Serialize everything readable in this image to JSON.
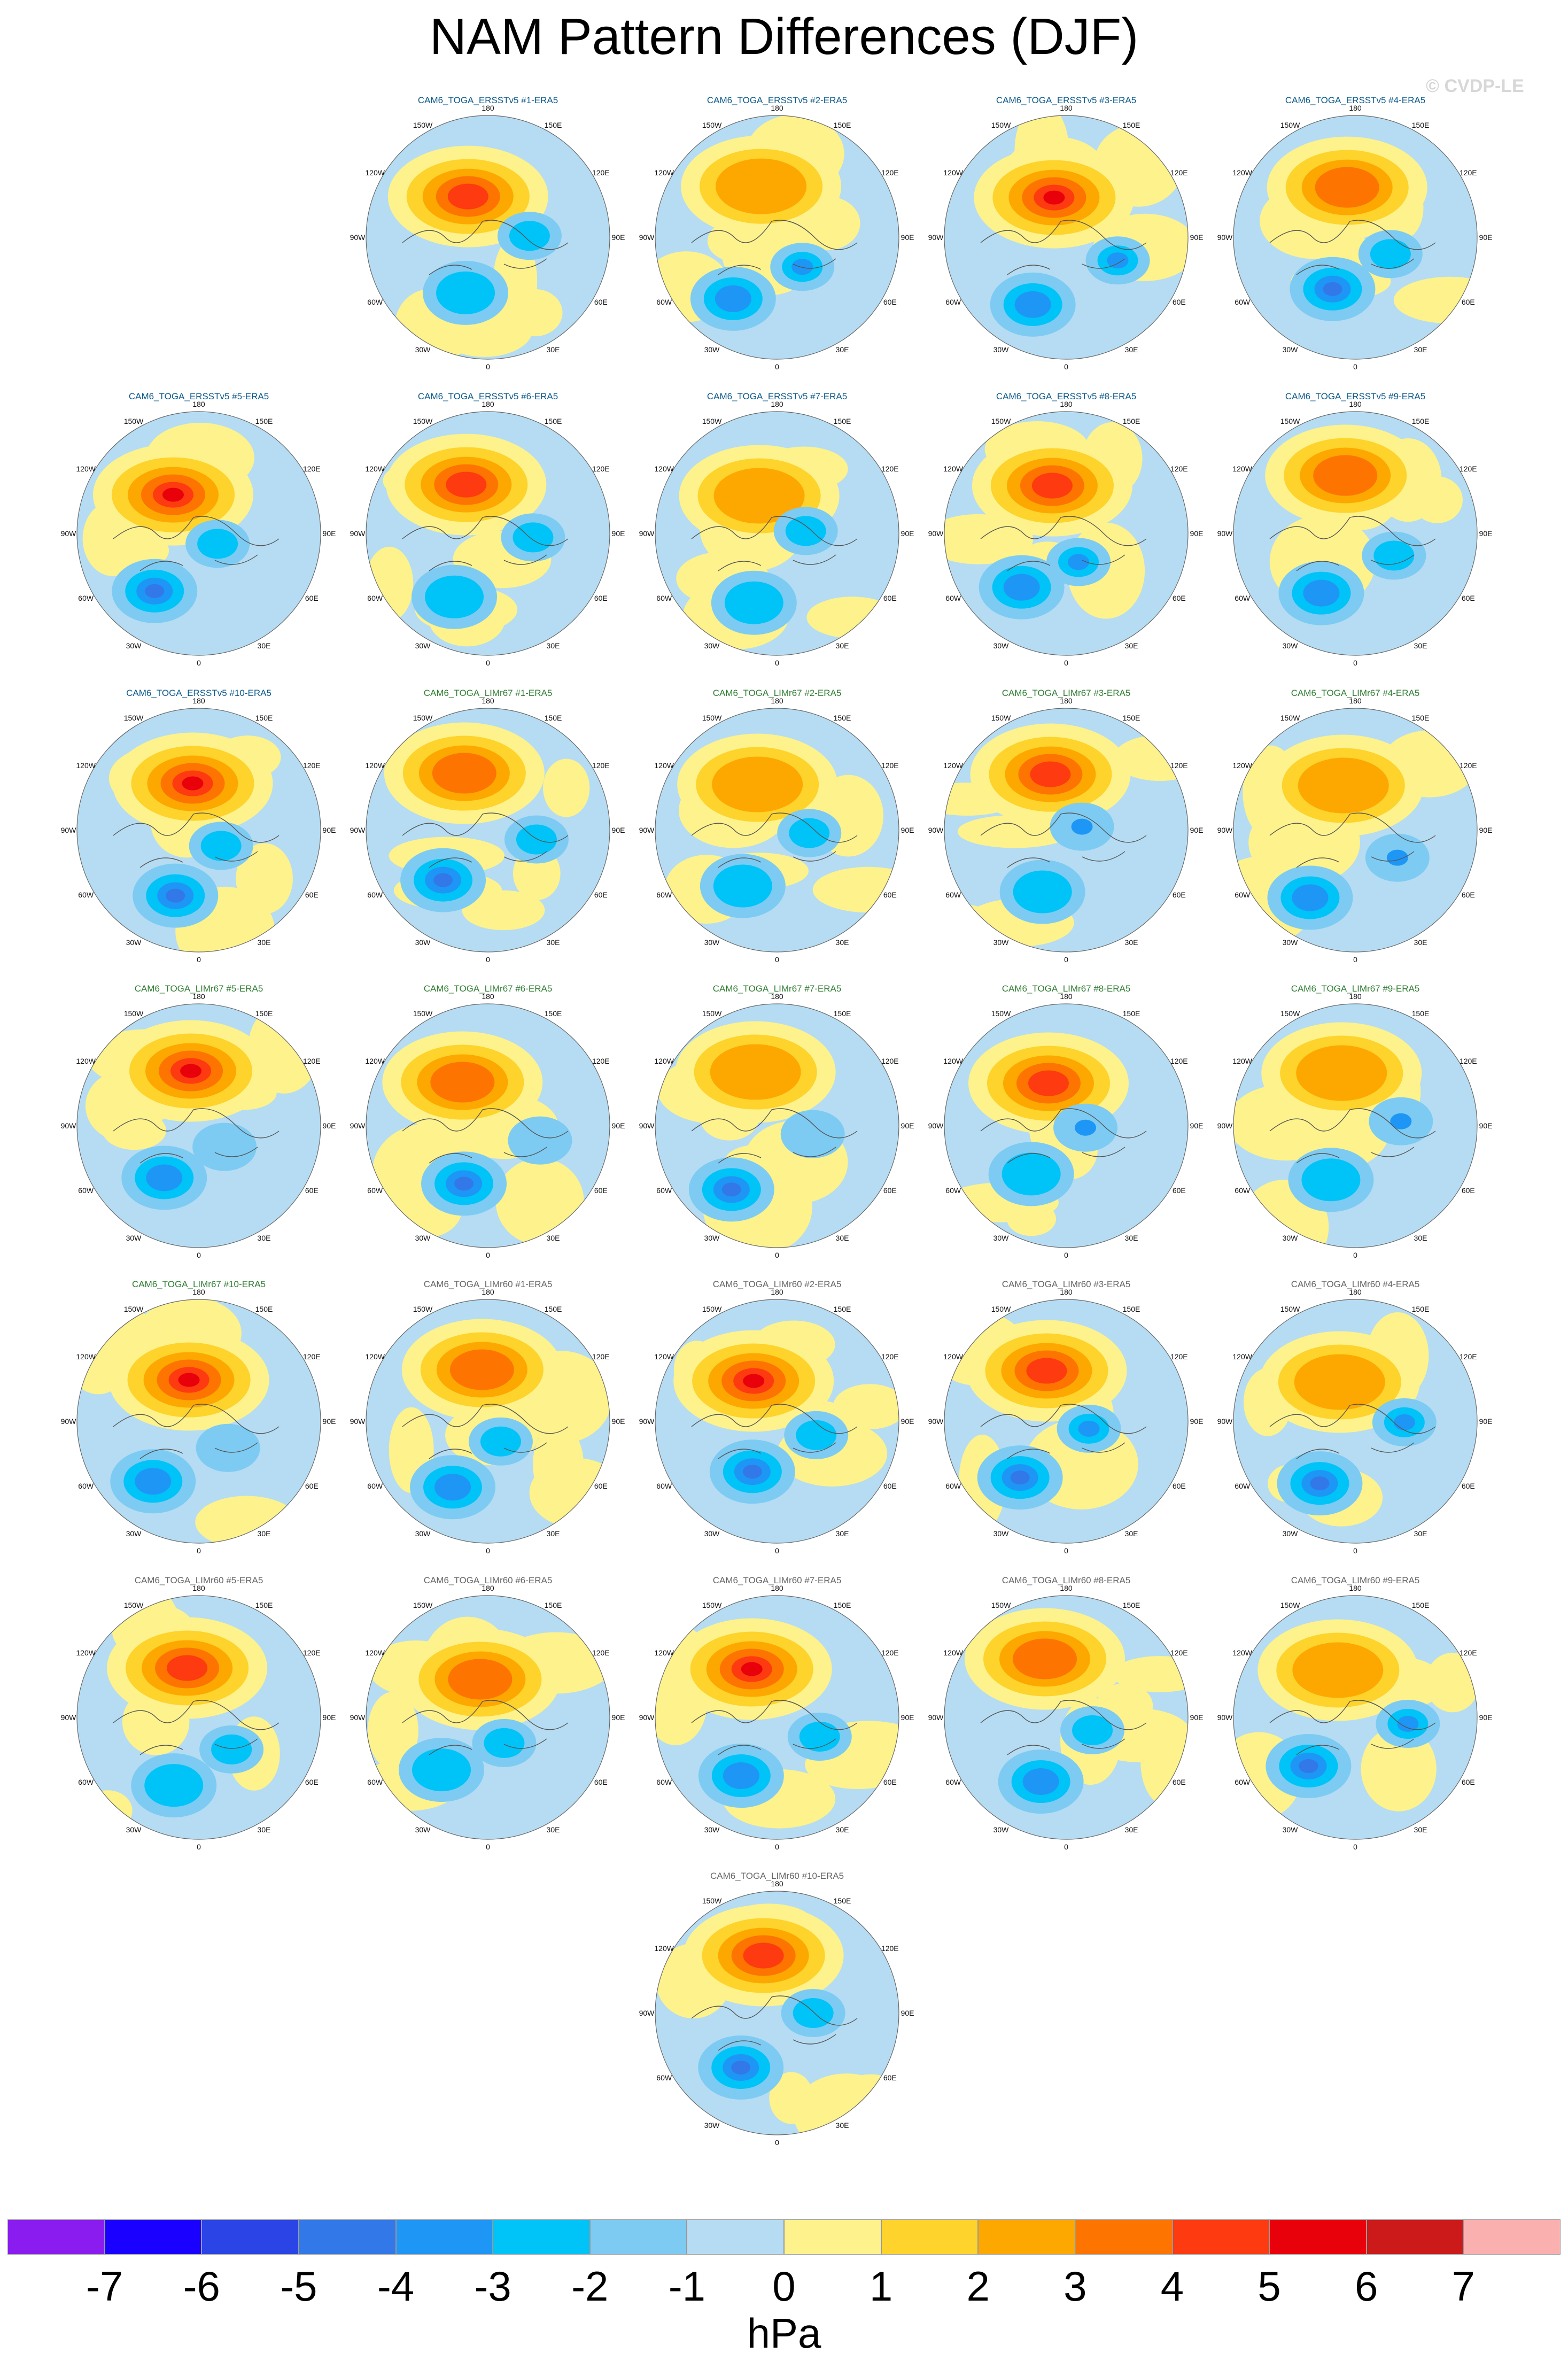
{
  "title": "NAM Pattern Differences (DJF)",
  "watermark": "© CVDP-LE",
  "colors": {
    "ERSST_title": "#0b5a8c",
    "LIMr67_title": "#2f7d32",
    "LIMr60_title": "#666666"
  },
  "map_labels": {
    "lon_180": "180",
    "lon_150W": "150W",
    "lon_150E": "150E",
    "lon_120W": "120W",
    "lon_120E": "120E",
    "lon_90W": "90W",
    "lon_90E": "90E",
    "lon_60W": "60W",
    "lon_60E": "60E",
    "lon_30W": "30W",
    "lon_30E": "30E",
    "lon_0": "0"
  },
  "panels": [
    {
      "title": "CAM6_TOGA_ERSSTv5 #1-ERA5",
      "group": "ERSST"
    },
    {
      "title": "CAM6_TOGA_ERSSTv5 #2-ERA5",
      "group": "ERSST"
    },
    {
      "title": "CAM6_TOGA_ERSSTv5 #3-ERA5",
      "group": "ERSST"
    },
    {
      "title": "CAM6_TOGA_ERSSTv5 #4-ERA5",
      "group": "ERSST"
    },
    {
      "title": "CAM6_TOGA_ERSSTv5 #5-ERA5",
      "group": "ERSST"
    },
    {
      "title": "CAM6_TOGA_ERSSTv5 #6-ERA5",
      "group": "ERSST"
    },
    {
      "title": "CAM6_TOGA_ERSSTv5 #7-ERA5",
      "group": "ERSST"
    },
    {
      "title": "CAM6_TOGA_ERSSTv5 #8-ERA5",
      "group": "ERSST"
    },
    {
      "title": "CAM6_TOGA_ERSSTv5 #9-ERA5",
      "group": "ERSST"
    },
    {
      "title": "CAM6_TOGA_ERSSTv5 #10-ERA5",
      "group": "ERSST"
    },
    {
      "title": "CAM6_TOGA_LIMr67 #1-ERA5",
      "group": "LIMr67"
    },
    {
      "title": "CAM6_TOGA_LIMr67 #2-ERA5",
      "group": "LIMr67"
    },
    {
      "title": "CAM6_TOGA_LIMr67 #3-ERA5",
      "group": "LIMr67"
    },
    {
      "title": "CAM6_TOGA_LIMr67 #4-ERA5",
      "group": "LIMr67"
    },
    {
      "title": "CAM6_TOGA_LIMr67 #5-ERA5",
      "group": "LIMr67"
    },
    {
      "title": "CAM6_TOGA_LIMr67 #6-ERA5",
      "group": "LIMr67"
    },
    {
      "title": "CAM6_TOGA_LIMr67 #7-ERA5",
      "group": "LIMr67"
    },
    {
      "title": "CAM6_TOGA_LIMr67 #8-ERA5",
      "group": "LIMr67"
    },
    {
      "title": "CAM6_TOGA_LIMr67 #9-ERA5",
      "group": "LIMr67"
    },
    {
      "title": "CAM6_TOGA_LIMr67 #10-ERA5",
      "group": "LIMr67"
    },
    {
      "title": "CAM6_TOGA_LIMr60 #1-ERA5",
      "group": "LIMr60"
    },
    {
      "title": "CAM6_TOGA_LIMr60 #2-ERA5",
      "group": "LIMr60"
    },
    {
      "title": "CAM6_TOGA_LIMr60 #3-ERA5",
      "group": "LIMr60"
    },
    {
      "title": "CAM6_TOGA_LIMr60 #4-ERA5",
      "group": "LIMr60"
    },
    {
      "title": "CAM6_TOGA_LIMr60 #5-ERA5",
      "group": "LIMr60"
    },
    {
      "title": "CAM6_TOGA_LIMr60 #6-ERA5",
      "group": "LIMr60"
    },
    {
      "title": "CAM6_TOGA_LIMr60 #7-ERA5",
      "group": "LIMr60"
    },
    {
      "title": "CAM6_TOGA_LIMr60 #8-ERA5",
      "group": "LIMr60"
    },
    {
      "title": "CAM6_TOGA_LIMr60 #9-ERA5",
      "group": "LIMr60"
    },
    {
      "title": "CAM6_TOGA_LIMr60 #10-ERA5",
      "group": "LIMr60"
    }
  ],
  "colorbar": {
    "units": "hPa",
    "ticks": [
      "-7",
      "-6",
      "-5",
      "-4",
      "-3",
      "-2",
      "-1",
      "0",
      "1",
      "2",
      "3",
      "4",
      "5",
      "6",
      "7"
    ],
    "colors": [
      "#8b1cf0",
      "#1a00ff",
      "#2a44e6",
      "#3278e8",
      "#1e96f5",
      "#00c3f7",
      "#7dcbf2",
      "#b5dcf2",
      "#fdf28c",
      "#fdd32c",
      "#fda800",
      "#fd7400",
      "#fd3a10",
      "#e8000a",
      "#cc1a1a",
      "#fbb0b0"
    ]
  },
  "chart_data": {
    "type": "heatmap",
    "title": "NAM Pattern Differences (DJF)",
    "projection": "north polar stereographic",
    "colorbar_units": "hPa",
    "levels": [
      -7,
      -6,
      -5,
      -4,
      -3,
      -2,
      -1,
      0,
      1,
      2,
      3,
      4,
      5,
      6,
      7
    ],
    "panel_count": 30
  }
}
